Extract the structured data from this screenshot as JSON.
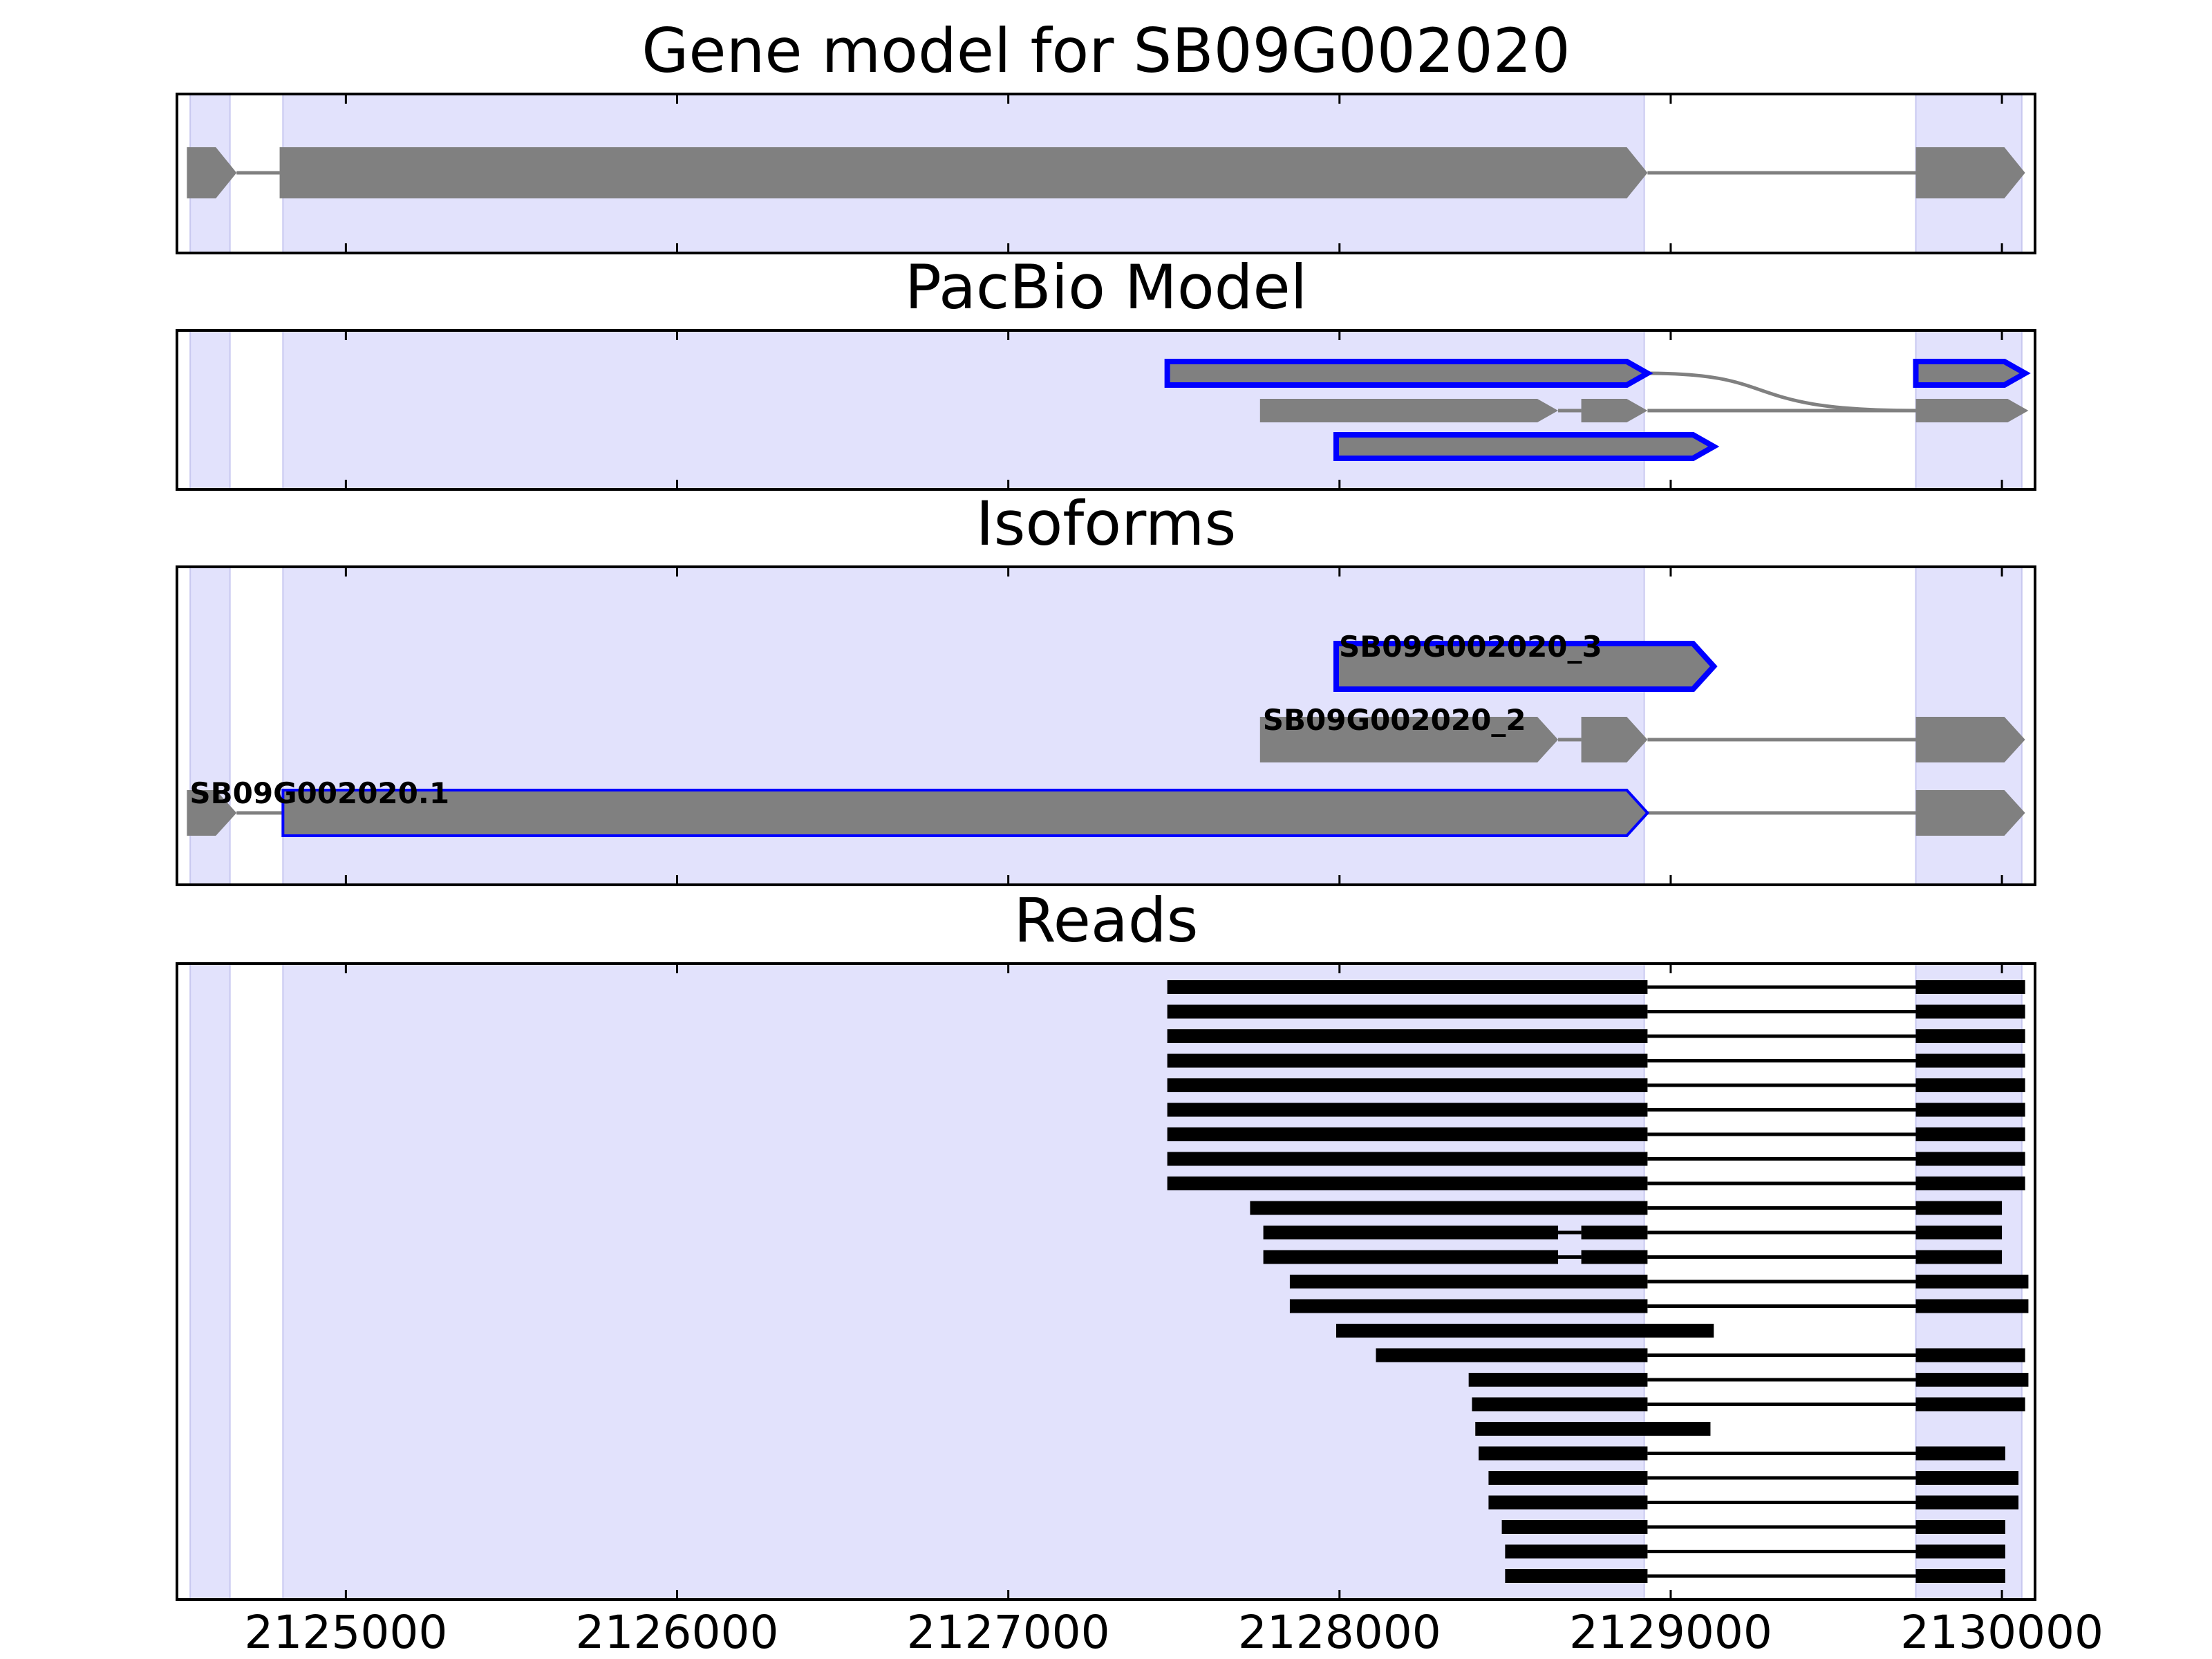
{
  "chart_data": {
    "type": "gene-track",
    "xlim": [
      2124490,
      2130100
    ],
    "x_ticks": [
      2125000,
      2126000,
      2127000,
      2128000,
      2129000,
      2130000
    ],
    "x_tick_labels": [
      "2125000",
      "2126000",
      "2127000",
      "2128000",
      "2129000",
      "2130000"
    ],
    "colors": {
      "shade": "#e2e2fc",
      "exon": "#808080",
      "highlight_outline": "#0000ff",
      "read": "#000000",
      "axis": "#000000"
    },
    "shaded_regions": [
      [
        2124530,
        2124650
      ],
      [
        2124810,
        2128920
      ],
      [
        2129740,
        2130060
      ]
    ],
    "panels": [
      {
        "title": "Gene model for SB09G002020",
        "rows": [
          {
            "label": "",
            "highlight": false,
            "exons": [
              [
                2124520,
                2124670
              ],
              [
                2124800,
                2128930
              ],
              [
                2129740,
                2130070
              ]
            ]
          }
        ]
      },
      {
        "title": "PacBio Model",
        "rows": [
          {
            "label": "",
            "highlight": true,
            "exons": [
              [
                2127480,
                2128930
              ],
              [
                2129740,
                2130070
              ]
            ]
          },
          {
            "label": "",
            "highlight": false,
            "exons": [
              [
                2127760,
                2128660
              ],
              [
                2128730,
                2128930
              ],
              [
                2129740,
                2130080
              ]
            ]
          },
          {
            "label": "",
            "highlight": true,
            "exons": [
              [
                2127990,
                2129130
              ]
            ]
          }
        ]
      },
      {
        "title": "Isoforms",
        "rows": [
          {
            "label": "SB09G002020_3",
            "highlight": true,
            "exons": [
              [
                2127990,
                2129130
              ]
            ]
          },
          {
            "label": "SB09G002020_2",
            "highlight": false,
            "exons": [
              [
                2127760,
                2128660
              ],
              [
                2128730,
                2128930
              ],
              [
                2129740,
                2130070
              ]
            ]
          },
          {
            "label": "SB09G002020.1",
            "highlight": true,
            "exons": [
              [
                2124520,
                2124670
              ],
              [
                2124810,
                2128930
              ],
              [
                2129740,
                2130070
              ]
            ]
          }
        ]
      },
      {
        "title": "Reads",
        "rows": [
          {
            "exons": [
              [
                2127480,
                2128930
              ],
              [
                2129740,
                2130070
              ]
            ]
          },
          {
            "exons": [
              [
                2127480,
                2128930
              ],
              [
                2129740,
                2130070
              ]
            ]
          },
          {
            "exons": [
              [
                2127480,
                2128930
              ],
              [
                2129740,
                2130070
              ]
            ]
          },
          {
            "exons": [
              [
                2127480,
                2128930
              ],
              [
                2129740,
                2130070
              ]
            ]
          },
          {
            "exons": [
              [
                2127480,
                2128930
              ],
              [
                2129740,
                2130070
              ]
            ]
          },
          {
            "exons": [
              [
                2127480,
                2128930
              ],
              [
                2129740,
                2130070
              ]
            ]
          },
          {
            "exons": [
              [
                2127480,
                2128930
              ],
              [
                2129740,
                2130070
              ]
            ]
          },
          {
            "exons": [
              [
                2127480,
                2128930
              ],
              [
                2129740,
                2130070
              ]
            ]
          },
          {
            "exons": [
              [
                2127480,
                2128930
              ],
              [
                2129740,
                2130070
              ]
            ]
          },
          {
            "exons": [
              [
                2127730,
                2128930
              ],
              [
                2129740,
                2130000
              ]
            ]
          },
          {
            "exons": [
              [
                2127770,
                2128660
              ],
              [
                2128730,
                2128930
              ],
              [
                2129740,
                2130000
              ]
            ]
          },
          {
            "exons": [
              [
                2127770,
                2128660
              ],
              [
                2128730,
                2128930
              ],
              [
                2129740,
                2130000
              ]
            ]
          },
          {
            "exons": [
              [
                2127850,
                2128930
              ],
              [
                2129740,
                2130080
              ]
            ]
          },
          {
            "exons": [
              [
                2127850,
                2128930
              ],
              [
                2129740,
                2130080
              ]
            ]
          },
          {
            "exons": [
              [
                2127990,
                2129130
              ]
            ]
          },
          {
            "exons": [
              [
                2128110,
                2128930
              ],
              [
                2129740,
                2130070
              ]
            ]
          },
          {
            "exons": [
              [
                2128390,
                2128930
              ],
              [
                2129740,
                2130080
              ]
            ]
          },
          {
            "exons": [
              [
                2128400,
                2128930
              ],
              [
                2129740,
                2130070
              ]
            ]
          },
          {
            "exons": [
              [
                2128410,
                2129120
              ]
            ]
          },
          {
            "exons": [
              [
                2128420,
                2128930
              ],
              [
                2129740,
                2130010
              ]
            ]
          },
          {
            "exons": [
              [
                2128450,
                2128930
              ],
              [
                2129740,
                2130050
              ]
            ]
          },
          {
            "exons": [
              [
                2128450,
                2128930
              ],
              [
                2129740,
                2130050
              ]
            ]
          },
          {
            "exons": [
              [
                2128490,
                2128930
              ],
              [
                2129740,
                2130010
              ]
            ]
          },
          {
            "exons": [
              [
                2128500,
                2128930
              ],
              [
                2129740,
                2130010
              ]
            ]
          },
          {
            "exons": [
              [
                2128500,
                2128930
              ],
              [
                2129740,
                2130010
              ]
            ]
          }
        ]
      }
    ]
  }
}
